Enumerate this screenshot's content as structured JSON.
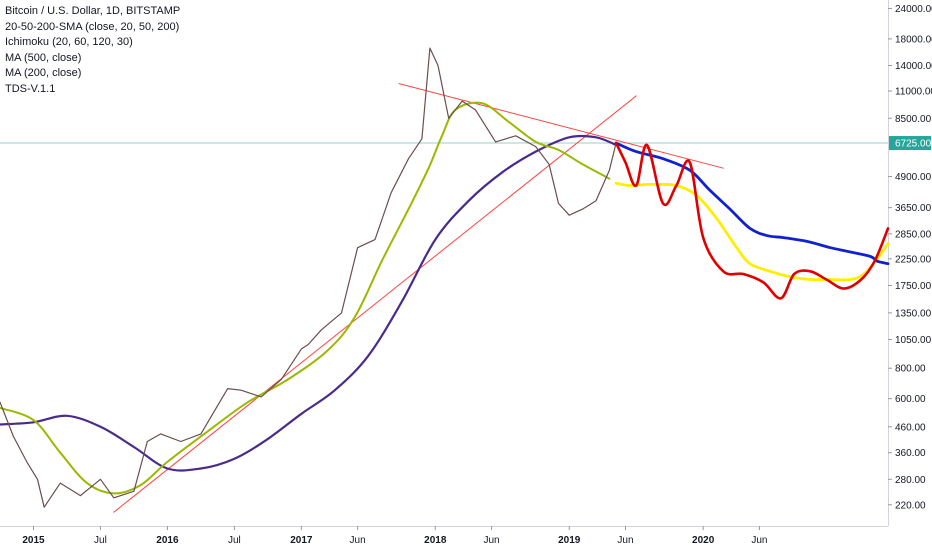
{
  "legend": {
    "title": "Bitcoin / U.S. Dollar, 1D, BITSTAMP",
    "indicators": [
      "20-50-200-SMA (close, 20, 50, 200)",
      "Ichimoku (20, 60, 120, 30)",
      "MA (500, close)",
      "MA (200, close)",
      "TDS-V.1.1"
    ]
  },
  "chart_data": {
    "type": "line",
    "yscale": "log",
    "ylim": [
      180,
      26000
    ],
    "xlim": [
      2014.75,
      2021.38
    ],
    "current_price": "6725.00",
    "colors": {
      "price": "#6b4e4e",
      "ma500": "#4a2b8c",
      "ma200": "#9ab900",
      "projection_red": "#e00000",
      "projection_blue": "#1122cc",
      "projection_yellow": "#ffee00",
      "trendline": "#ff4444",
      "price_line": "#3aa89a",
      "price_tag": "#26a69a"
    },
    "y_ticks": [
      220,
      280,
      360,
      460,
      600,
      800,
      1050,
      1350,
      1750,
      2250,
      2850,
      3650,
      4900,
      8500,
      11000,
      14000,
      18000,
      24000
    ],
    "y_tick_labels": [
      "220.00",
      "280.00",
      "360.00",
      "460.00",
      "600.00",
      "800.00",
      "1050.00",
      "1350.00",
      "1750.00",
      "2250.00",
      "2850.00",
      "3650.00",
      "4900.00",
      "8500.00",
      "11000.00",
      "14000.00",
      "18000.00",
      "24000.00"
    ],
    "x_ticks": [
      {
        "x": 2015.0,
        "label": "2015",
        "bold": true
      },
      {
        "x": 2015.5,
        "label": "Jul",
        "bold": false
      },
      {
        "x": 2016.0,
        "label": "2016",
        "bold": true
      },
      {
        "x": 2016.5,
        "label": "Jul",
        "bold": false
      },
      {
        "x": 2017.0,
        "label": "2017",
        "bold": true
      },
      {
        "x": 2017.42,
        "label": "Jun",
        "bold": false
      },
      {
        "x": 2018.0,
        "label": "2018",
        "bold": true
      },
      {
        "x": 2018.42,
        "label": "Jun",
        "bold": false
      },
      {
        "x": 2019.0,
        "label": "2019",
        "bold": true
      },
      {
        "x": 2019.42,
        "label": "Jun",
        "bold": false
      },
      {
        "x": 2020.0,
        "label": "2020",
        "bold": true
      },
      {
        "x": 2020.42,
        "label": "Jun",
        "bold": false
      }
    ],
    "series": [
      {
        "key": "price",
        "x": [
          2014.75,
          2014.85,
          2014.95,
          2015.03,
          2015.08,
          2015.2,
          2015.35,
          2015.5,
          2015.6,
          2015.75,
          2015.85,
          2015.95,
          2016.1,
          2016.25,
          2016.45,
          2016.55,
          2016.7,
          2016.85,
          2017.0,
          2017.05,
          2017.15,
          2017.3,
          2017.42,
          2017.55,
          2017.67,
          2017.8,
          2017.9,
          2017.96,
          2018.02,
          2018.1,
          2018.2,
          2018.3,
          2018.45,
          2018.6,
          2018.75,
          2018.85,
          2018.92,
          2019.0,
          2019.1,
          2019.2,
          2019.3,
          2019.35
        ],
        "y": [
          580,
          420,
          330,
          280,
          215,
          270,
          240,
          280,
          235,
          250,
          400,
          430,
          400,
          430,
          660,
          650,
          610,
          720,
          960,
          1000,
          1150,
          1350,
          2500,
          2700,
          4200,
          5800,
          7000,
          16500,
          14000,
          8500,
          10000,
          9200,
          6800,
          7200,
          6500,
          5500,
          3800,
          3400,
          3600,
          3900,
          5200,
          6725
        ]
      },
      {
        "key": "ma200",
        "x": [
          2014.75,
          2015.0,
          2015.2,
          2015.4,
          2015.6,
          2015.8,
          2016.0,
          2016.3,
          2016.6,
          2016.9,
          2017.2,
          2017.4,
          2017.6,
          2017.8,
          2017.95,
          2018.05,
          2018.15,
          2018.35,
          2018.55,
          2018.75,
          2018.92,
          2019.1,
          2019.3
        ],
        "y": [
          550,
          490,
          360,
          270,
          245,
          265,
          330,
          440,
          580,
          720,
          950,
          1300,
          2200,
          3600,
          5300,
          7200,
          9200,
          9800,
          8200,
          6800,
          6300,
          5500,
          4800
        ]
      },
      {
        "key": "ma500",
        "x": [
          2014.75,
          2015.0,
          2015.25,
          2015.5,
          2015.75,
          2016.0,
          2016.25,
          2016.5,
          2016.75,
          2017.0,
          2017.25,
          2017.5,
          2017.75,
          2018.0,
          2018.25,
          2018.5,
          2018.75,
          2019.0,
          2019.2,
          2019.35
        ],
        "y": [
          470,
          480,
          510,
          460,
          380,
          310,
          310,
          340,
          410,
          520,
          650,
          900,
          1500,
          2700,
          3900,
          5100,
          6200,
          7100,
          7100,
          6600
        ]
      },
      {
        "key": "projection_red",
        "x": [
          2019.35,
          2019.42,
          2019.5,
          2019.58,
          2019.7,
          2019.8,
          2019.9,
          2020.0,
          2020.15,
          2020.3,
          2020.45,
          2020.58,
          2020.68,
          2020.8,
          2020.92,
          2021.05,
          2021.18,
          2021.28,
          2021.38
        ],
        "y": [
          6725,
          5600,
          4500,
          6600,
          3800,
          4500,
          5600,
          2750,
          2000,
          1950,
          1800,
          1550,
          1950,
          2000,
          1850,
          1700,
          1850,
          2200,
          3000
        ]
      },
      {
        "key": "projection_blue",
        "x": [
          2019.35,
          2019.5,
          2019.7,
          2019.9,
          2020.05,
          2020.2,
          2020.35,
          2020.48,
          2020.6,
          2020.78,
          2020.95,
          2021.1,
          2021.25,
          2021.3,
          2021.38
        ],
        "y": [
          6725,
          6200,
          5800,
          5200,
          4300,
          3600,
          3000,
          2800,
          2750,
          2650,
          2500,
          2400,
          2300,
          2200,
          2150
        ]
      },
      {
        "key": "projection_yellow",
        "x": [
          2019.35,
          2019.45,
          2019.6,
          2019.8,
          2019.95,
          2020.1,
          2020.25,
          2020.35,
          2020.5,
          2020.65,
          2020.8,
          2020.95,
          2021.1,
          2021.2,
          2021.3,
          2021.38
        ],
        "y": [
          4600,
          4500,
          4550,
          4500,
          4100,
          3300,
          2500,
          2150,
          2000,
          1900,
          1850,
          1850,
          1850,
          1950,
          2250,
          2600
        ]
      },
      {
        "key": "trendline",
        "x": [
          2015.6,
          2019.5
        ],
        "y": [
          205,
          10500
        ]
      },
      {
        "key": "trendline",
        "x": [
          2017.73,
          2020.15
        ],
        "y": [
          11800,
          5300
        ]
      }
    ]
  }
}
